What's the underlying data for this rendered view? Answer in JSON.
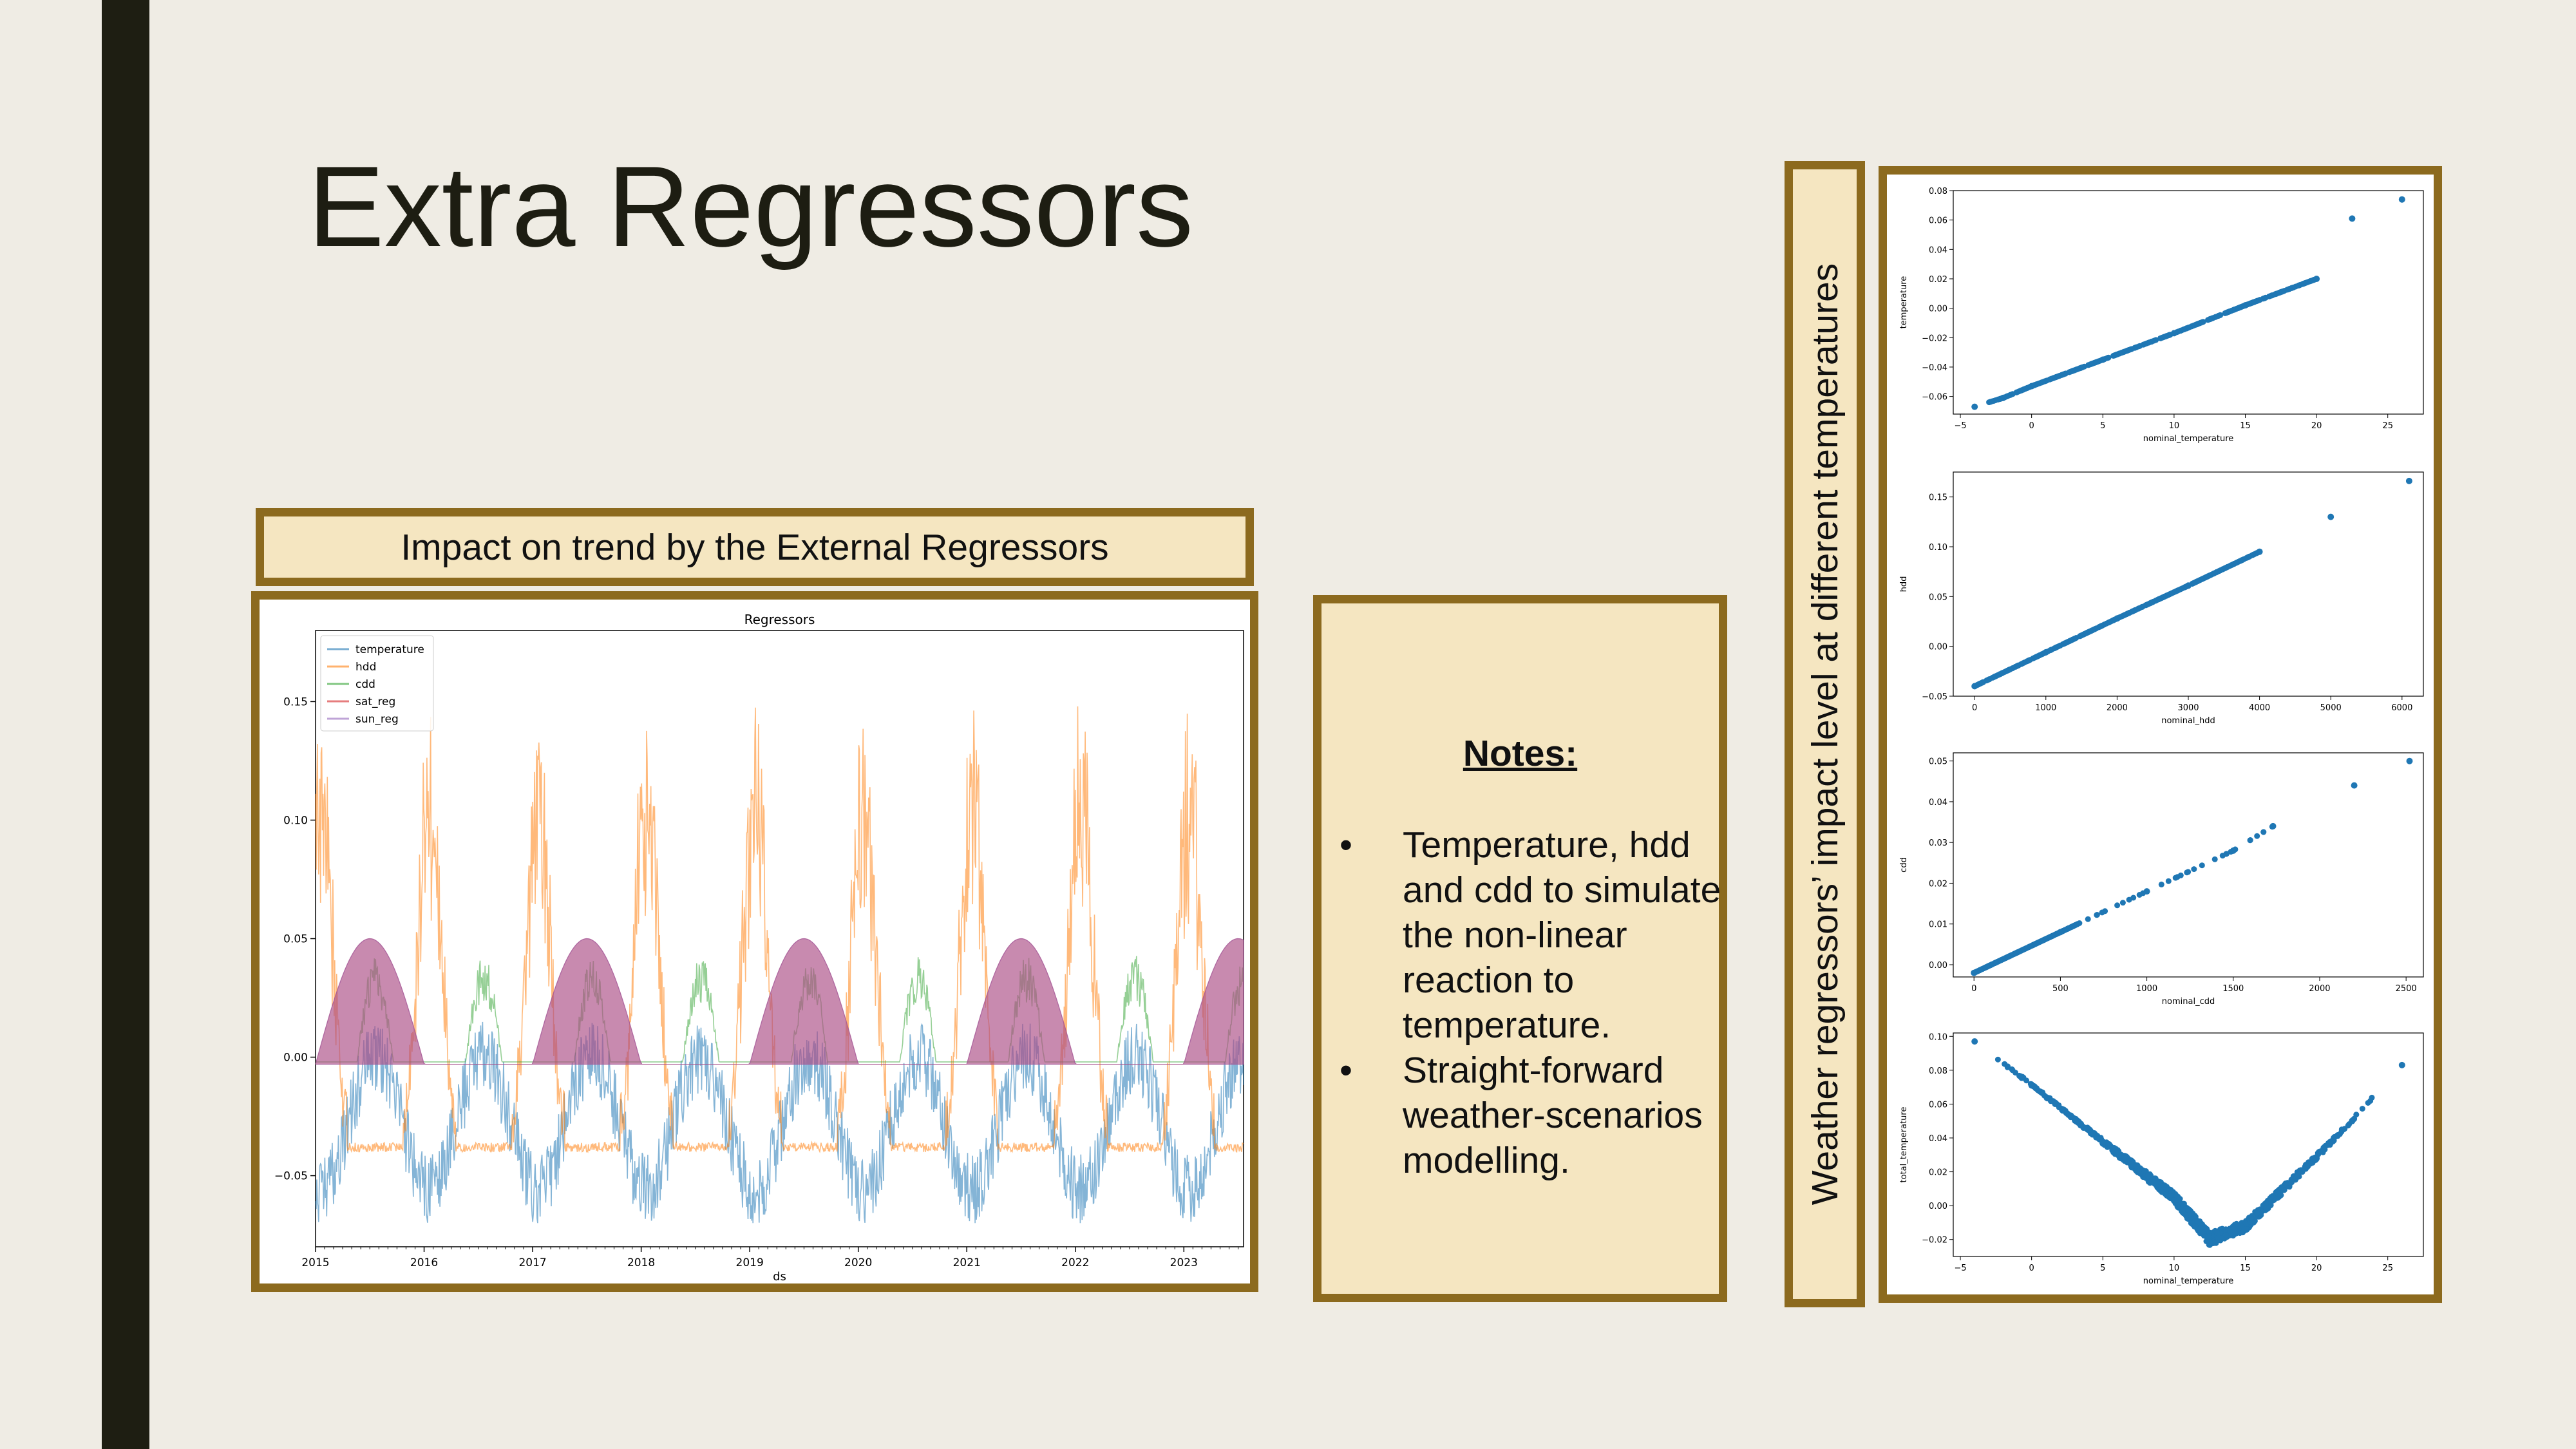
{
  "slide": {
    "title": "Extra Regressors",
    "caption": "Impact on trend by the External Regressors",
    "notes_title": "Notes:",
    "notes": [
      "Temperature, hdd and cdd to simulate the non-linear reaction to temperature.",
      "Straight-forward weather-scenarios modelling."
    ],
    "side_label": "Weather regressors’ impact level at different temperatures"
  },
  "colors": {
    "accent_border": "#8c6a1e",
    "box_fill": "#f5e6c1",
    "background": "#efece4",
    "dark_bar": "#1e1e12",
    "scatter": "#1f77b4"
  },
  "chart_data": [
    {
      "type": "line",
      "title": "Regressors",
      "xlabel": "ds",
      "ylabel": "",
      "x_ticks": [
        "2015",
        "2016",
        "2017",
        "2018",
        "2019",
        "2020",
        "2021",
        "2022",
        "2023"
      ],
      "xlim": [
        2015.0,
        2023.55
      ],
      "ylim": [
        -0.08,
        0.18
      ],
      "y_ticks": [
        "−0.05",
        "0.00",
        "0.05",
        "0.10",
        "0.15"
      ],
      "y_tick_values": [
        -0.05,
        0.0,
        0.05,
        0.1,
        0.15
      ],
      "legend": "top-left",
      "series": [
        {
          "name": "temperature",
          "color": "#1f77b4",
          "min": -0.07,
          "max": 0.05
        },
        {
          "name": "hdd",
          "color": "#ff7f0e",
          "min": -0.04,
          "max": 0.165
        },
        {
          "name": "cdd",
          "color": "#2ca02c",
          "min": -0.002,
          "max": 0.05
        },
        {
          "name": "sat_reg",
          "color": "#d62728",
          "amplitude": 0.05,
          "baseline": -0.003
        },
        {
          "name": "sun_reg",
          "color": "#9467bd",
          "amplitude": 0.05,
          "baseline": -0.003
        }
      ]
    },
    {
      "type": "scatter",
      "xlabel": "nominal_temperature",
      "ylabel": "temperature",
      "x_ticks": [
        "−5",
        "0",
        "5",
        "10",
        "15",
        "20",
        "25"
      ],
      "x_tick_values": [
        -5,
        0,
        5,
        10,
        15,
        20,
        25
      ],
      "y_ticks": [
        "−0.06",
        "−0.04",
        "−0.02",
        "0.00",
        "0.02",
        "0.04",
        "0.06",
        "0.08"
      ],
      "y_tick_values": [
        -0.06,
        -0.04,
        -0.02,
        0,
        0.02,
        0.04,
        0.06,
        0.08
      ],
      "xlim": [
        -5.5,
        27.5
      ],
      "ylim": [
        -0.072,
        0.08
      ],
      "x": [
        -4.0,
        -2.0,
        0,
        5,
        10,
        15,
        20,
        22.5,
        26.0
      ],
      "y": [
        -0.067,
        -0.061,
        -0.053,
        -0.035,
        -0.017,
        0.002,
        0.02,
        0.061,
        0.074
      ]
    },
    {
      "type": "scatter",
      "xlabel": "nominal_hdd",
      "ylabel": "hdd",
      "x_ticks": [
        "0",
        "1000",
        "2000",
        "3000",
        "4000",
        "5000",
        "6000"
      ],
      "x_tick_values": [
        0,
        1000,
        2000,
        3000,
        4000,
        5000,
        6000
      ],
      "y_ticks": [
        "−0.05",
        "0.00",
        "0.05",
        "0.10",
        "0.15"
      ],
      "y_tick_values": [
        -0.05,
        0,
        0.05,
        0.1,
        0.15
      ],
      "xlim": [
        -300,
        6300
      ],
      "ylim": [
        -0.05,
        0.175
      ],
      "x": [
        0,
        1000,
        2000,
        3000,
        4000,
        5000,
        6100
      ],
      "y": [
        -0.04,
        -0.006,
        0.028,
        0.061,
        0.095,
        0.13,
        0.166
      ]
    },
    {
      "type": "scatter",
      "xlabel": "nominal_cdd",
      "ylabel": "cdd",
      "x_ticks": [
        "0",
        "500",
        "1000",
        "1500",
        "2000",
        "2500"
      ],
      "x_tick_values": [
        0,
        500,
        1000,
        1500,
        2000,
        2500
      ],
      "y_ticks": [
        "0.00",
        "0.01",
        "0.02",
        "0.03",
        "0.04",
        "0.05"
      ],
      "y_tick_values": [
        0,
        0.01,
        0.02,
        0.03,
        0.04,
        0.05
      ],
      "xlim": [
        -120,
        2600
      ],
      "ylim": [
        -0.003,
        0.052
      ],
      "x": [
        0,
        500,
        1000,
        1500,
        1730,
        2200,
        2520
      ],
      "y": [
        -0.002,
        0.008,
        0.018,
        0.028,
        0.034,
        0.044,
        0.05
      ]
    },
    {
      "type": "scatter",
      "xlabel": "nominal_temperature",
      "ylabel": "total_temperature",
      "x_ticks": [
        "−5",
        "0",
        "5",
        "10",
        "15",
        "20",
        "25"
      ],
      "x_tick_values": [
        -5,
        0,
        5,
        10,
        15,
        20,
        25
      ],
      "y_ticks": [
        "−0.02",
        "0.00",
        "0.02",
        "0.04",
        "0.06",
        "0.08",
        "0.10"
      ],
      "y_tick_values": [
        -0.02,
        0,
        0.02,
        0.04,
        0.06,
        0.08,
        0.1
      ],
      "xlim": [
        -5.5,
        27.5
      ],
      "ylim": [
        -0.03,
        0.102
      ],
      "x": [
        -4.0,
        0,
        5,
        10,
        12.5,
        15,
        20,
        22.5,
        26.0
      ],
      "y": [
        0.097,
        0.071,
        0.037,
        0.003,
        -0.022,
        -0.014,
        0.028,
        0.05,
        0.083
      ]
    }
  ]
}
